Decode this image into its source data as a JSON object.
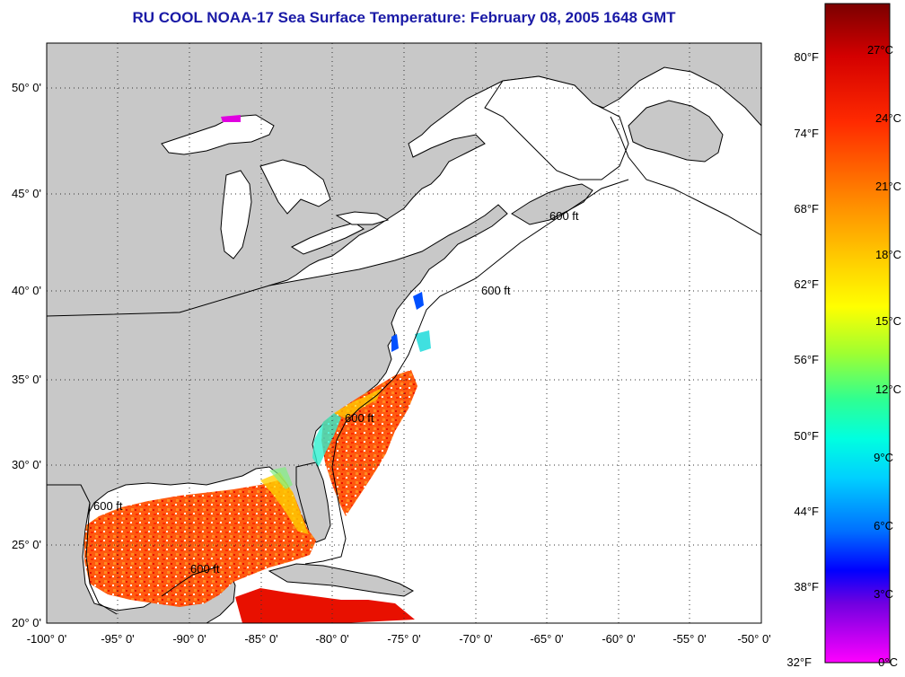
{
  "title": "RU COOL  NOAA-17  Sea Surface Temperature:  February 08, 2005 1648 GMT",
  "map": {
    "lon_ticks": [
      "-100° 0'",
      "-95° 0'",
      "-90° 0'",
      "-85° 0'",
      "-80° 0'",
      "-75° 0'",
      "-70° 0'",
      "-65° 0'",
      "-60° 0'",
      "-55° 0'",
      "-50° 0'"
    ],
    "lat_ticks": [
      "50° 0'",
      "45° 0'",
      "40° 0'",
      "35° 0'",
      "30° 0'",
      "25° 0'",
      "20° 0'"
    ],
    "contour_label": "600 ft",
    "land_color": "#c8c8c8",
    "grid": true
  },
  "colorbar": {
    "fahrenheit_labels": [
      "80°F",
      "74°F",
      "68°F",
      "62°F",
      "56°F",
      "50°F",
      "44°F",
      "38°F",
      "32°F"
    ],
    "celsius_labels": [
      "27°C",
      "24°C",
      "21°C",
      "18°C",
      "15°C",
      "12°C",
      "9°C",
      "6°C",
      "3°C",
      "0°C"
    ],
    "colors": [
      "#8b0000",
      "#ff0000",
      "#ff7a00",
      "#ffd000",
      "#ffff00",
      "#90ff30",
      "#00ffd0",
      "#00e0ff",
      "#0060ff",
      "#0000ff",
      "#8000ff",
      "#ff00ff"
    ]
  }
}
